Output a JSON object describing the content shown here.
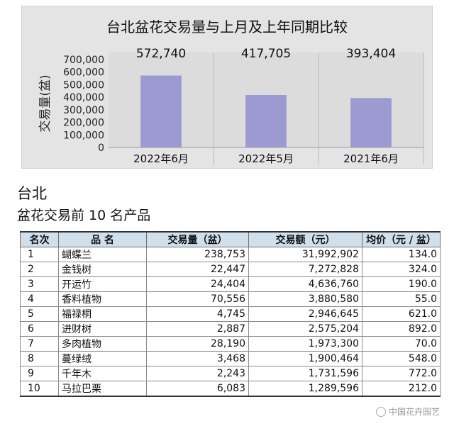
{
  "chart_data": {
    "type": "bar",
    "title": "台北盆花交易量与上月及上年同期比较",
    "ylabel": "交易量(盆)",
    "xlabel": "",
    "categories": [
      "2022年6月",
      "2022年5月",
      "2021年6月"
    ],
    "values": [
      572740,
      417705,
      393404
    ],
    "value_labels": [
      "572,740",
      "417,705",
      "393,404"
    ],
    "y_ticks": [
      "0",
      "100,000",
      "200,000",
      "300,000",
      "400,000",
      "500,000",
      "600,000",
      "700,000"
    ],
    "ylim": [
      0,
      700000
    ],
    "grid": "vertical separators",
    "bar_color": "#9b9bd1"
  },
  "section": {
    "title": "台北",
    "subtitle": "盆花交易前 10 名产品"
  },
  "table": {
    "headers": [
      "名次",
      "品 名",
      "交易量（盆）",
      "交易额（元）",
      "均价（元 / 盆）"
    ],
    "rows": [
      [
        "1",
        "蝴蝶兰",
        "238,753",
        "31,992,902",
        "134.0"
      ],
      [
        "2",
        "金钱树",
        "22,447",
        "7,272,828",
        "324.0"
      ],
      [
        "3",
        "开运竹",
        "24,404",
        "4,636,760",
        "190.0"
      ],
      [
        "4",
        "香料植物",
        "70,556",
        "3,880,580",
        "55.0"
      ],
      [
        "5",
        "福禄桐",
        "4,745",
        "2,946,645",
        "621.0"
      ],
      [
        "6",
        "进财树",
        "2,887",
        "2,575,204",
        "892.0"
      ],
      [
        "7",
        "多肉植物",
        "28,190",
        "1,973,300",
        "70.0"
      ],
      [
        "8",
        "蔓绿绒",
        "3,468",
        "1,900,464",
        "548.0"
      ],
      [
        "9",
        "千年木",
        "2,243",
        "1,731,596",
        "772.0"
      ],
      [
        "10",
        "马拉巴栗",
        "6,083",
        "1,289,596",
        "212.0"
      ]
    ]
  },
  "watermark": {
    "text": "中国花卉园艺"
  }
}
